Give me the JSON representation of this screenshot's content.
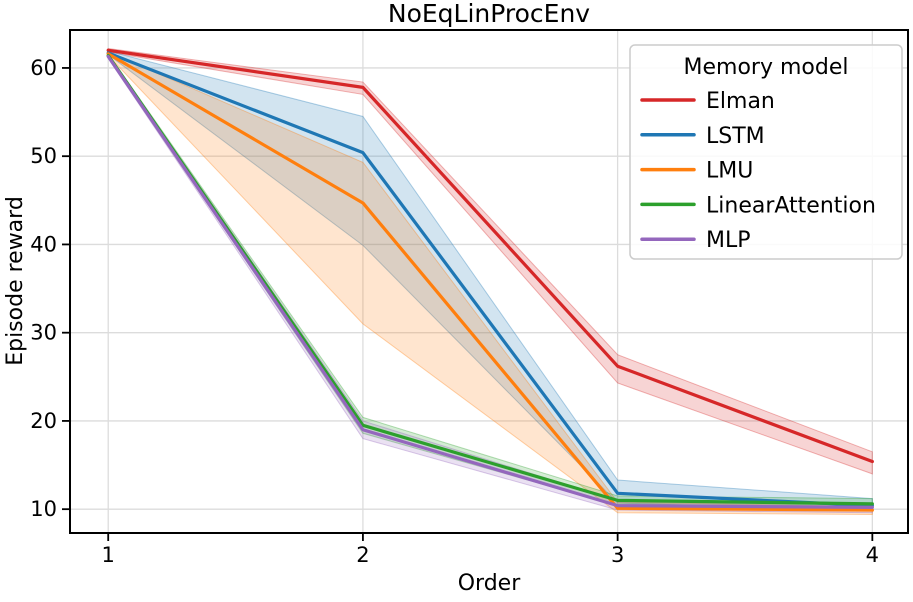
{
  "chart_data": {
    "type": "line",
    "title": "NoEqLinProcEnv",
    "xlabel": "Order",
    "ylabel": "Episode reward",
    "x": [
      1,
      2,
      3,
      4
    ],
    "xtick_labels": [
      "1",
      "2",
      "3",
      "4"
    ],
    "yticks": [
      10,
      20,
      30,
      40,
      50,
      60
    ],
    "xlim": [
      0.85,
      4.14
    ],
    "ylim": [
      7.3,
      64.3
    ],
    "grid": true,
    "legend": {
      "title": "Memory model",
      "position": "upper right"
    },
    "series": [
      {
        "name": "Elman",
        "color": "#d62728",
        "values": [
          62.0,
          57.8,
          26.2,
          15.4
        ],
        "band_low": [
          61.8,
          57.0,
          24.3,
          14.0
        ],
        "band_high": [
          62.2,
          58.4,
          27.5,
          16.5
        ]
      },
      {
        "name": "LSTM",
        "color": "#1f77b4",
        "values": [
          61.7,
          50.4,
          11.8,
          10.4
        ],
        "band_low": [
          61.5,
          39.9,
          10.7,
          9.8
        ],
        "band_high": [
          61.9,
          54.5,
          13.3,
          11.2
        ]
      },
      {
        "name": "LMU",
        "color": "#ff7f0e",
        "values": [
          61.6,
          44.7,
          10.1,
          9.9
        ],
        "band_low": [
          61.4,
          31.0,
          9.6,
          9.4
        ],
        "band_high": [
          61.8,
          49.3,
          10.8,
          10.3
        ]
      },
      {
        "name": "LinearAttention",
        "color": "#2ca02c",
        "values": [
          61.4,
          19.5,
          11.0,
          10.6
        ],
        "band_low": [
          61.2,
          18.6,
          10.4,
          10.0
        ],
        "band_high": [
          61.6,
          20.4,
          11.5,
          11.2
        ]
      },
      {
        "name": "MLP",
        "color": "#9467bd",
        "values": [
          61.3,
          19.0,
          10.4,
          10.2
        ],
        "band_low": [
          61.1,
          18.0,
          9.9,
          9.6
        ],
        "band_high": [
          61.5,
          20.0,
          11.0,
          10.7
        ]
      }
    ]
  },
  "style": {
    "grid_color": "#dcdcdc",
    "spine_color": "#000000",
    "tick_color": "#000000",
    "band_alpha": "0.2",
    "legend_border_color": "#cccccc",
    "legend_bg": "#ffffff"
  }
}
